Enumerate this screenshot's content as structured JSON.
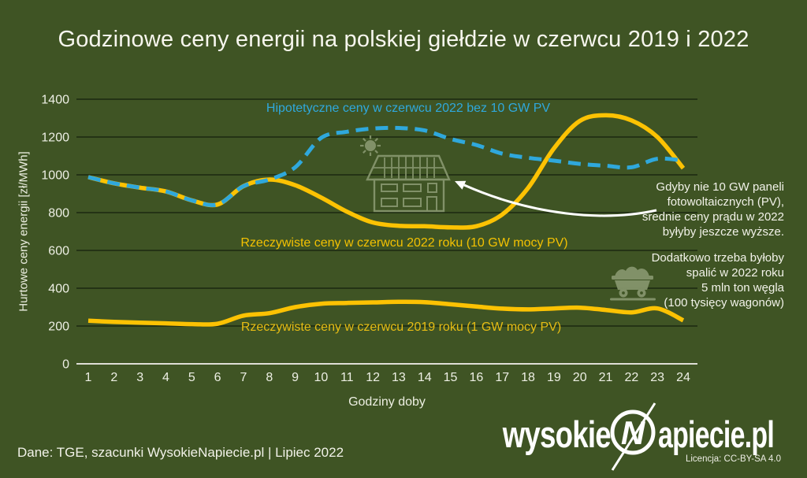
{
  "title": "Godzinowe ceny energii na polskiej giełdzie w czerwcu 2019 i 2022",
  "colors": {
    "background": "#3F5424",
    "accent_yellow": "#FCC203",
    "accent_blue": "#2FA8DC",
    "icon_green": "#85956C",
    "gridline": "#1B2810",
    "axis_line": "#DEDED6",
    "text_light": "#F2F2E9"
  },
  "chart_data": {
    "type": "line",
    "title": "Godzinowe ceny energii na polskiej giełdzie w czerwcu 2019 i 2022",
    "xlabel": "Godziny doby",
    "ylabel": "Hurtowe ceny energii [zł/MWh]",
    "x": [
      1,
      2,
      3,
      4,
      5,
      6,
      7,
      8,
      9,
      10,
      11,
      12,
      13,
      14,
      15,
      16,
      17,
      18,
      19,
      20,
      21,
      22,
      23,
      24
    ],
    "ylim": [
      0,
      1400
    ],
    "yticks": [
      0,
      200,
      400,
      600,
      800,
      1000,
      1200,
      1400
    ],
    "grid": "horizontal",
    "legend_position": "inline-labels",
    "series": [
      {
        "name": "Hipotetyczne ceny w czerwcu 2022 bez 10 GW PV",
        "color": "#2FA8DC",
        "style": "dashed",
        "values": [
          988,
          955,
          932,
          912,
          865,
          843,
          940,
          975,
          1040,
          1195,
          1228,
          1245,
          1248,
          1235,
          1190,
          1158,
          1112,
          1090,
          1075,
          1058,
          1048,
          1040,
          1085,
          1075
        ]
      },
      {
        "name": "Rzeczywiste ceny w czerwcu 2022 roku (10 GW mocy PV)",
        "color": "#FCC203",
        "style": "solid",
        "values": [
          988,
          955,
          932,
          912,
          865,
          843,
          940,
          975,
          945,
          880,
          805,
          748,
          730,
          728,
          722,
          728,
          790,
          930,
          1140,
          1285,
          1315,
          1288,
          1200,
          1035
        ]
      },
      {
        "name": "Rzeczywiste ceny w czerwcu 2019 roku (1 GW mocy PV)",
        "color": "#FCC203",
        "style": "solid",
        "values": [
          228,
          222,
          218,
          214,
          210,
          212,
          255,
          268,
          300,
          318,
          322,
          325,
          328,
          326,
          315,
          303,
          292,
          288,
          293,
          297,
          285,
          272,
          293,
          230
        ]
      }
    ]
  },
  "annotations": {
    "pv": [
      "Gdyby nie 10 GW paneli",
      "fotowoltaicznych (PV),",
      "średnie ceny prądu w 2022",
      "byłyby jeszcze wyższe."
    ],
    "coal": [
      "Dodatkowo trzeba byłoby",
      "spalić w 2022 roku",
      "5 mln ton węgla",
      "(100 tysięcy wagonów)"
    ]
  },
  "footer": {
    "source": "Dane: TGE, szacunki WysokieNapiecie.pl  |  Lipiec 2022",
    "license": "Licencja: CC-BY-SA 4.0"
  },
  "logo": {
    "part1": "wysokie",
    "n": "N",
    "part2": "apiecie.pl"
  }
}
